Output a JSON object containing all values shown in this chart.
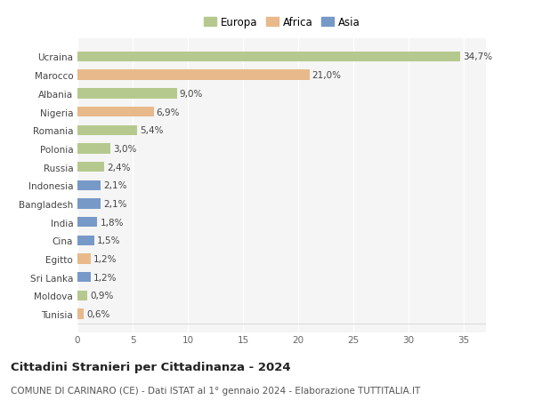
{
  "countries": [
    "Ucraina",
    "Marocco",
    "Albania",
    "Nigeria",
    "Romania",
    "Polonia",
    "Russia",
    "Indonesia",
    "Bangladesh",
    "India",
    "Cina",
    "Egitto",
    "Sri Lanka",
    "Moldova",
    "Tunisia"
  ],
  "values": [
    34.7,
    21.0,
    9.0,
    6.9,
    5.4,
    3.0,
    2.4,
    2.1,
    2.1,
    1.8,
    1.5,
    1.2,
    1.2,
    0.9,
    0.6
  ],
  "continents": [
    "Europa",
    "Africa",
    "Europa",
    "Africa",
    "Europa",
    "Europa",
    "Europa",
    "Asia",
    "Asia",
    "Asia",
    "Asia",
    "Africa",
    "Asia",
    "Europa",
    "Africa"
  ],
  "labels": [
    "34,7%",
    "21,0%",
    "9,0%",
    "6,9%",
    "5,4%",
    "3,0%",
    "2,4%",
    "2,1%",
    "2,1%",
    "1,8%",
    "1,5%",
    "1,2%",
    "1,2%",
    "0,9%",
    "0,6%"
  ],
  "colors": {
    "Europa": "#b5c98e",
    "Africa": "#e8b98a",
    "Asia": "#7799c8"
  },
  "background_color": "#ffffff",
  "plot_bg_color": "#f5f5f5",
  "title": "Cittadini Stranieri per Cittadinanza - 2024",
  "subtitle": "COMUNE DI CARINARO (CE) - Dati ISTAT al 1° gennaio 2024 - Elaborazione TUTTITALIA.IT",
  "xlim": [
    0,
    37
  ],
  "xticks": [
    0,
    5,
    10,
    15,
    20,
    25,
    30,
    35
  ],
  "grid_color": "#ffffff",
  "bar_height": 0.55,
  "label_fontsize": 7.5,
  "tick_fontsize": 7.5,
  "ytick_fontsize": 7.5,
  "title_fontsize": 9.5,
  "subtitle_fontsize": 7.5,
  "legend_fontsize": 8.5
}
